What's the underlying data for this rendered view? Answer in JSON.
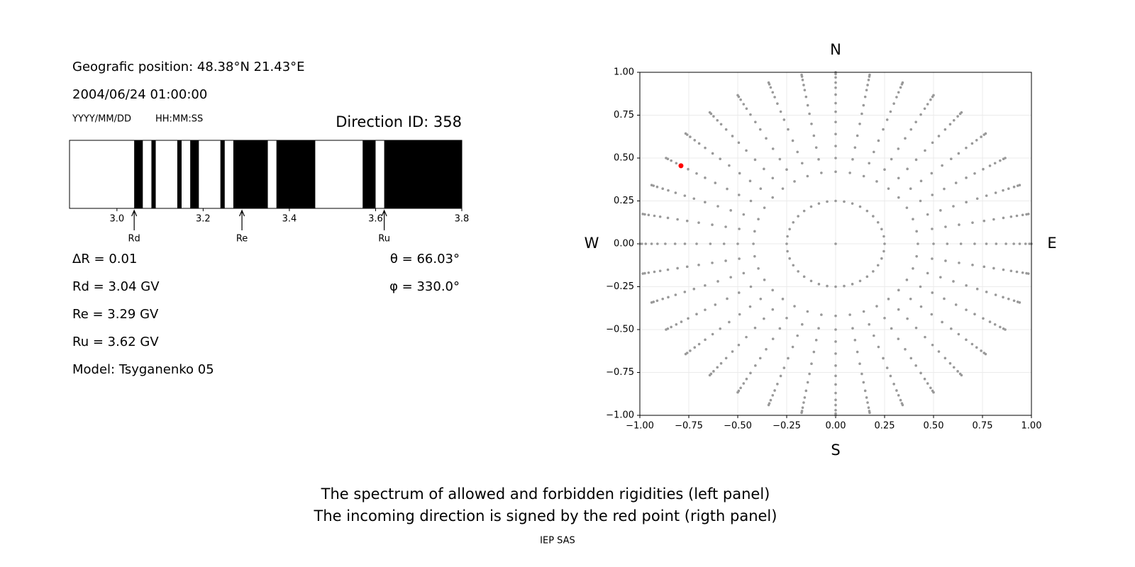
{
  "info": {
    "position": "Geografic position: 48.38°N 21.43°E",
    "datetime": "2004/06/24 01:00:00",
    "date_format": "YYYY/MM/DD",
    "time_format": "HH:MM:SS",
    "direction_id": "Direction ID: 358",
    "delta_r": "ΔR = 0.01",
    "rd": "Rd = 3.04 GV",
    "re": "Re = 3.29 GV",
    "ru": "Ru = 3.62 GV",
    "model": "Model: Tsyganenko 05",
    "theta": "θ = 66.03°",
    "phi": "φ = 330.0°"
  },
  "chart_data": [
    {
      "type": "spectrum",
      "xlim": [
        2.89,
        3.8
      ],
      "xticks": [
        {
          "value": 3,
          "label": "3.0"
        },
        3.2,
        3.4,
        3.6,
        3.8
      ],
      "color": "#000000",
      "bands": [
        [
          3.04,
          3.06
        ],
        [
          3.08,
          3.09
        ],
        [
          3.14,
          3.15
        ],
        [
          3.17,
          3.19
        ],
        [
          3.24,
          3.25
        ],
        [
          3.27,
          3.35
        ],
        [
          3.37,
          3.46
        ],
        [
          3.57,
          3.6
        ],
        [
          3.62,
          3.8
        ]
      ],
      "markers": [
        {
          "label": "Rd",
          "value": 3.04
        },
        {
          "label": "Re",
          "value": 3.29
        },
        {
          "label": "Ru",
          "value": 3.62
        }
      ]
    },
    {
      "type": "scatter",
      "xlim": [
        -1,
        1
      ],
      "ylim": [
        -1,
        1
      ],
      "xticks": [
        {
          "value": -1,
          "label": "−1.00"
        },
        {
          "value": -0.75,
          "label": "−0.75"
        },
        {
          "value": -0.5,
          "label": "−0.50"
        },
        {
          "value": -0.25,
          "label": "−0.25"
        },
        {
          "value": 0,
          "label": "0.00"
        },
        {
          "value": 0.25,
          "label": "0.25"
        },
        {
          "value": 0.5,
          "label": "0.50"
        },
        {
          "value": 0.75,
          "label": "0.75"
        },
        {
          "value": 1,
          "label": "1.00"
        }
      ],
      "yticks": [
        {
          "value": -1,
          "label": "−1.00"
        },
        {
          "value": -0.75,
          "label": "−0.75"
        },
        {
          "value": -0.5,
          "label": "−0.50"
        },
        {
          "value": -0.25,
          "label": "−0.25"
        },
        {
          "value": 0,
          "label": "0.00"
        },
        {
          "value": 0.25,
          "label": "0.25"
        },
        {
          "value": 0.5,
          "label": "0.50"
        },
        {
          "value": 0.75,
          "label": "0.75"
        },
        {
          "value": 1,
          "label": "1.00"
        }
      ],
      "grid": true,
      "compass": {
        "top": "N",
        "bottom": "S",
        "left": "W",
        "right": "E"
      },
      "rays": {
        "color": "#999999",
        "angles": [
          0,
          10,
          20,
          30,
          40,
          50,
          60,
          70,
          80,
          90,
          100,
          110,
          120,
          130,
          140,
          150,
          160,
          170,
          180,
          190,
          200,
          210,
          220,
          230,
          240,
          250,
          260,
          270,
          280,
          290,
          300,
          310,
          320,
          330,
          340,
          350
        ],
        "radii": [
          0.42,
          0.5,
          0.57,
          0.64,
          0.71,
          0.77,
          0.82,
          0.87,
          0.91,
          0.94,
          0.97,
          0.99,
          1.0
        ],
        "ring_radius": 0.25
      },
      "center": {
        "x": 0,
        "y": 0
      },
      "selected": {
        "x": -0.79,
        "y": 0.455,
        "color": "#ff0000"
      }
    }
  ],
  "caption": [
    "The spectrum of allowed and forbidden rigidities (left panel)",
    "The incoming direction is signed by the red point (rigth panel)"
  ],
  "credit": "IEP SAS"
}
